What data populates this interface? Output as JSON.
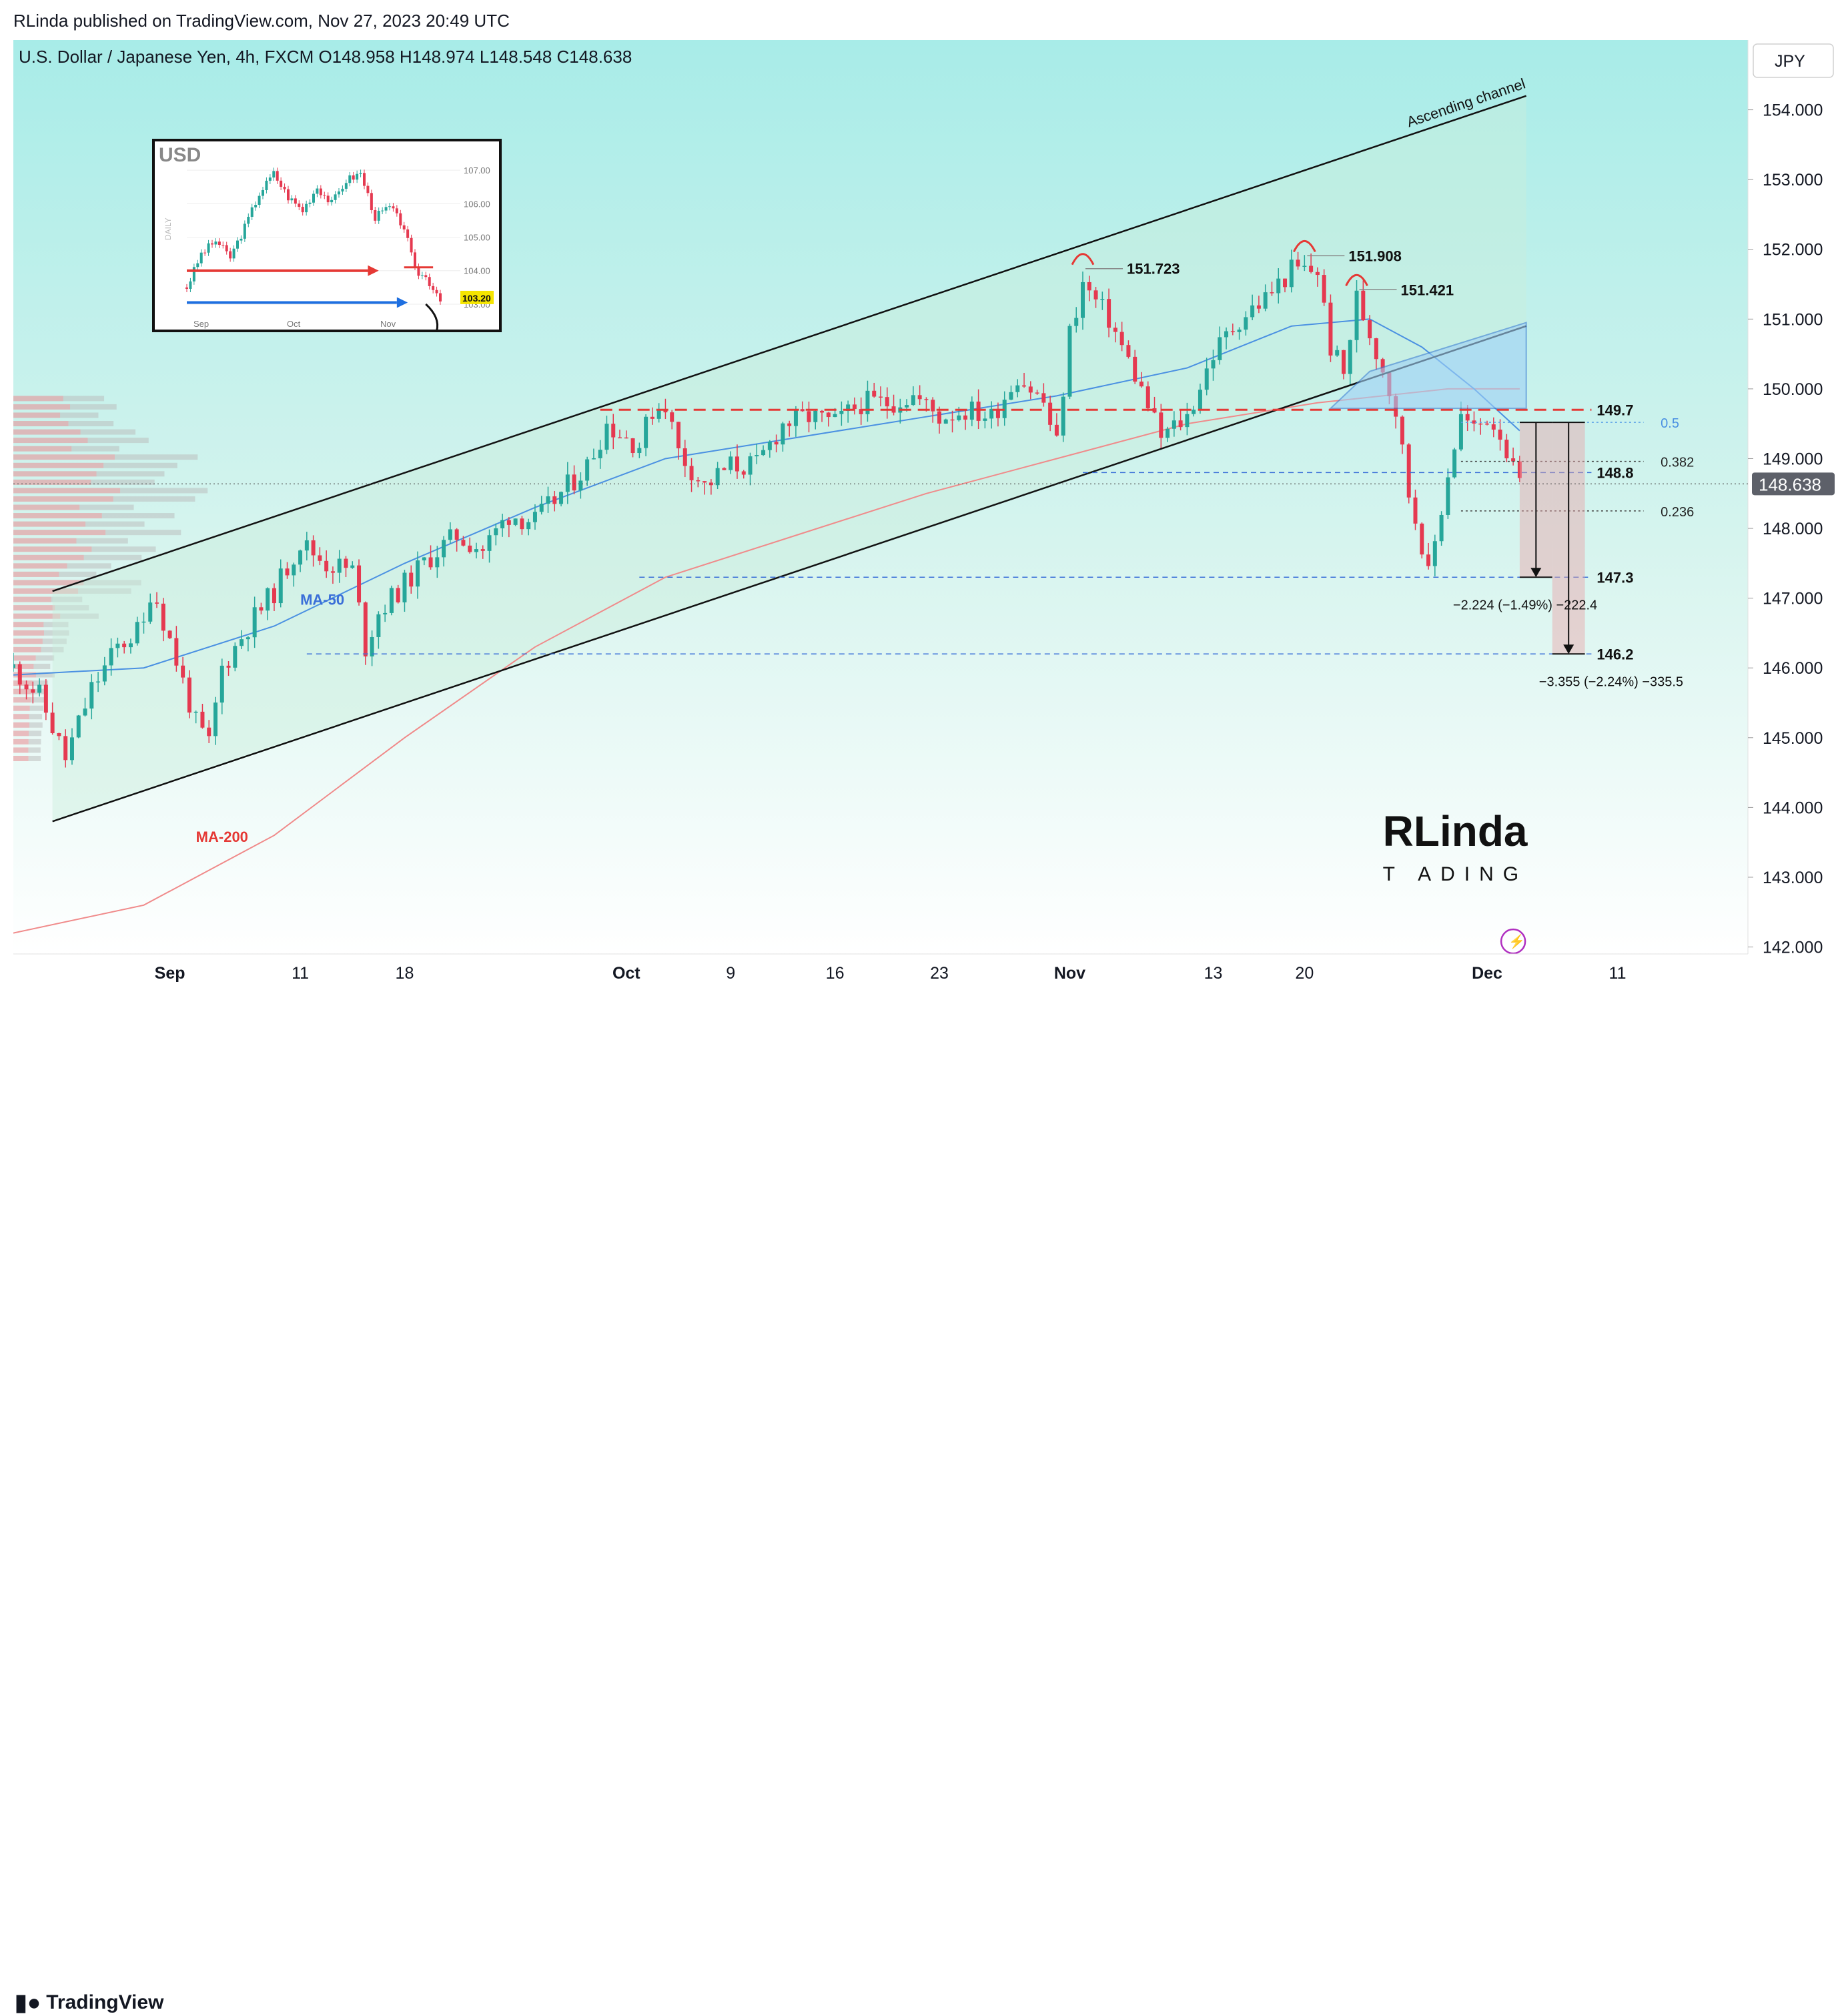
{
  "publisher": "RLinda published on TradingView.com, Nov 27, 2023 20:49 UTC",
  "symbol_line": "U.S. Dollar / Japanese Yen, 4h, FXCM  O148.958  H148.974  L148.548  C148.638",
  "currency_button": "JPY",
  "footer_logo": "TradingView",
  "colors": {
    "bg_top": "#a8ece8",
    "bg_bottom": "#ffffff",
    "up": "#26a69a",
    "down": "#e53950",
    "red": "#e53935",
    "blue": "#3a7bd5"
  },
  "chart_data": {
    "type": "line",
    "title": "U.S. Dollar / Japanese Yen, 4h, FXCM",
    "ylabel": "JPY",
    "ylim": [
      141.9,
      155.0
    ],
    "y_ticks": [
      "154.000",
      "153.000",
      "152.000",
      "151.000",
      "150.000",
      "149.000",
      "148.000",
      "147.000",
      "146.000",
      "145.000",
      "144.000",
      "143.000",
      "142.000"
    ],
    "x_ticks": [
      "Sep",
      "11",
      "18",
      "Oct",
      "9",
      "16",
      "23",
      "Nov",
      "13",
      "20",
      "Dec",
      "11"
    ],
    "x_tick_days": [
      7,
      17,
      25,
      42,
      50,
      58,
      66,
      76,
      87,
      94,
      108,
      118
    ],
    "x_range_days": [
      -5,
      128
    ],
    "price_path": [
      [
        -5,
        146.0
      ],
      [
        -3,
        145.6
      ],
      [
        -1,
        144.7
      ],
      [
        1,
        145.7
      ],
      [
        3,
        146.3
      ],
      [
        5,
        146.6
      ],
      [
        5.6,
        147.2
      ],
      [
        7,
        146.4
      ],
      [
        9,
        145.2
      ],
      [
        10,
        144.9
      ],
      [
        11,
        146.0
      ],
      [
        13,
        146.6
      ],
      [
        15,
        147.1
      ],
      [
        17,
        147.8
      ],
      [
        19,
        147.5
      ],
      [
        21,
        147.4
      ],
      [
        22,
        146.3
      ],
      [
        23,
        146.8
      ],
      [
        25,
        147.2
      ],
      [
        27,
        147.6
      ],
      [
        29,
        147.9
      ],
      [
        31,
        147.7
      ],
      [
        33,
        148.2
      ],
      [
        35,
        148.1
      ],
      [
        37,
        148.5
      ],
      [
        39,
        148.9
      ],
      [
        40.5,
        149.5
      ],
      [
        42,
        149.3
      ],
      [
        43,
        149.2
      ],
      [
        44,
        149.7
      ],
      [
        45,
        149.8
      ],
      [
        46,
        149.1
      ],
      [
        48,
        148.6
      ],
      [
        50,
        148.9
      ],
      [
        52,
        148.9
      ],
      [
        54,
        149.5
      ],
      [
        56,
        149.6
      ],
      [
        58,
        149.5
      ],
      [
        60,
        149.8
      ],
      [
        62,
        149.8
      ],
      [
        64,
        149.9
      ],
      [
        66,
        149.6
      ],
      [
        68,
        149.7
      ],
      [
        70,
        149.6
      ],
      [
        72,
        150.2
      ],
      [
        74,
        149.8
      ],
      [
        75,
        149.2
      ],
      [
        76,
        150.8
      ],
      [
        77,
        151.5
      ],
      [
        79,
        151.0
      ],
      [
        81,
        150.2
      ],
      [
        83,
        149.3
      ],
      [
        85,
        149.6
      ],
      [
        87,
        150.5
      ],
      [
        89,
        151.0
      ],
      [
        91,
        151.3
      ],
      [
        93,
        151.7
      ],
      [
        95,
        151.7
      ],
      [
        96,
        150.6
      ],
      [
        97,
        150.2
      ],
      [
        98,
        151.3
      ],
      [
        99,
        150.8
      ],
      [
        100,
        150.3
      ],
      [
        101,
        149.7
      ],
      [
        102,
        148.5
      ],
      [
        103,
        147.8
      ],
      [
        103.5,
        147.3
      ],
      [
        105,
        148.8
      ],
      [
        106,
        149.6
      ],
      [
        107,
        149.4
      ],
      [
        108,
        149.6
      ],
      [
        109,
        149.4
      ],
      [
        110,
        148.8
      ],
      [
        110.5,
        148.638
      ]
    ],
    "ma50_path": [
      [
        -5,
        145.9
      ],
      [
        5,
        146.0
      ],
      [
        15,
        146.6
      ],
      [
        25,
        147.5
      ],
      [
        35,
        148.3
      ],
      [
        45,
        149.0
      ],
      [
        55,
        149.3
      ],
      [
        65,
        149.6
      ],
      [
        75,
        149.9
      ],
      [
        85,
        150.3
      ],
      [
        93,
        150.9
      ],
      [
        99,
        151.0
      ],
      [
        103,
        150.6
      ],
      [
        107,
        150.0
      ],
      [
        110.5,
        149.4
      ]
    ],
    "ma200_path": [
      [
        -5,
        142.2
      ],
      [
        5,
        142.6
      ],
      [
        15,
        143.6
      ],
      [
        25,
        145.0
      ],
      [
        35,
        146.3
      ],
      [
        45,
        147.3
      ],
      [
        55,
        147.9
      ],
      [
        65,
        148.5
      ],
      [
        75,
        149.0
      ],
      [
        85,
        149.5
      ],
      [
        95,
        149.8
      ],
      [
        105,
        150.0
      ],
      [
        110.5,
        150.0
      ]
    ],
    "channel_upper": [
      [
        -2,
        147.1
      ],
      [
        111,
        154.2
      ]
    ],
    "channel_lower": [
      [
        -2,
        143.8
      ],
      [
        111,
        150.9
      ]
    ],
    "levels": [
      {
        "value": 149.7,
        "label": "149.7"
      },
      {
        "value": 148.8,
        "label": "148.8"
      },
      {
        "value": 147.3,
        "label": "147.3"
      },
      {
        "value": 146.2,
        "label": "146.2"
      }
    ],
    "fib_levels": [
      {
        "value": 149.52,
        "label": "0.5"
      },
      {
        "value": 148.96,
        "label": "0.382"
      },
      {
        "value": 148.25,
        "label": "0.236"
      }
    ],
    "peaks": [
      {
        "day": 77,
        "value": 151.723,
        "label": "151.723"
      },
      {
        "day": 94,
        "value": 151.908,
        "label": "151.908"
      },
      {
        "day": 98,
        "value": 151.421,
        "label": "151.421"
      }
    ],
    "projections": [
      {
        "from": 149.52,
        "to": 147.3,
        "label": "−2.224 (−1.49%) −222.4"
      },
      {
        "from": 149.52,
        "to": 146.2,
        "label": "−3.355 (−2.24%) −335.5"
      }
    ],
    "last_price": 148.638,
    "last_price_label": "148.638",
    "annotations": {
      "channel": "Ascending channel",
      "ma50": "MA-50",
      "ma200": "MA-200"
    },
    "brand": {
      "line1": "RLinda",
      "line2": "T  ADING"
    },
    "inset": {
      "title": "USD",
      "side_label": "DAILY",
      "y_ticks": [
        "107.00",
        "106.00",
        "105.00",
        "104.00",
        "103.00"
      ],
      "x_ticks": [
        "Sep",
        "Oct",
        "Nov"
      ],
      "price_label": "103.20",
      "ylim": [
        102.8,
        107.5
      ],
      "path": [
        [
          0,
          103.5
        ],
        [
          4,
          104.5
        ],
        [
          8,
          104.9
        ],
        [
          12,
          104.4
        ],
        [
          16,
          105.3
        ],
        [
          20,
          106.3
        ],
        [
          24,
          106.9
        ],
        [
          28,
          106.2
        ],
        [
          32,
          105.8
        ],
        [
          36,
          106.5
        ],
        [
          40,
          106.0
        ],
        [
          44,
          106.7
        ],
        [
          48,
          106.9
        ],
        [
          52,
          105.6
        ],
        [
          56,
          105.9
        ],
        [
          60,
          105.3
        ],
        [
          63,
          104.0
        ],
        [
          66,
          103.8
        ],
        [
          70,
          103.2
        ]
      ],
      "x_days": [
        0,
        70
      ]
    }
  }
}
